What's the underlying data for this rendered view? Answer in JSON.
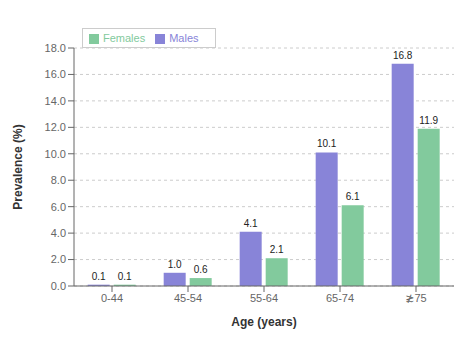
{
  "chart_data": {
    "type": "bar",
    "xlabel": "Age (years)",
    "ylabel": "Prevalence (%)",
    "categories": [
      "0-44",
      "45-54",
      "55-64",
      "65-74",
      "≵75"
    ],
    "series": [
      {
        "name": "Males",
        "color": "#8884d8",
        "values": [
          0.1,
          1.0,
          4.1,
          10.1,
          16.8
        ],
        "value_labels": [
          "0.1",
          "1.0",
          "4.1",
          "10.1",
          "16.8"
        ]
      },
      {
        "name": "Females",
        "color": "#82ca9d",
        "values": [
          0.1,
          0.6,
          2.1,
          6.1,
          11.9
        ],
        "value_labels": [
          "0.1",
          "0.6",
          "2.1",
          "6.1",
          "11.9"
        ]
      }
    ],
    "ylim": [
      0,
      18.0
    ],
    "yticks": [
      {
        "value": 0.0,
        "label": "0.0"
      },
      {
        "value": 2.0,
        "label": "2.0"
      },
      {
        "value": 4.0,
        "label": "4.0"
      },
      {
        "value": 6.0,
        "label": "6.0"
      },
      {
        "value": 8.0,
        "label": "8.0"
      },
      {
        "value": 10.0,
        "label": "10.0"
      },
      {
        "value": 12.0,
        "label": "12.0"
      },
      {
        "value": 14.0,
        "label": "14.0"
      },
      {
        "value": 16.0,
        "label": "16.0"
      },
      {
        "value": 18.0,
        "label": "18.0"
      }
    ],
    "grid": true,
    "legend": "upper left",
    "data_labels": true
  }
}
